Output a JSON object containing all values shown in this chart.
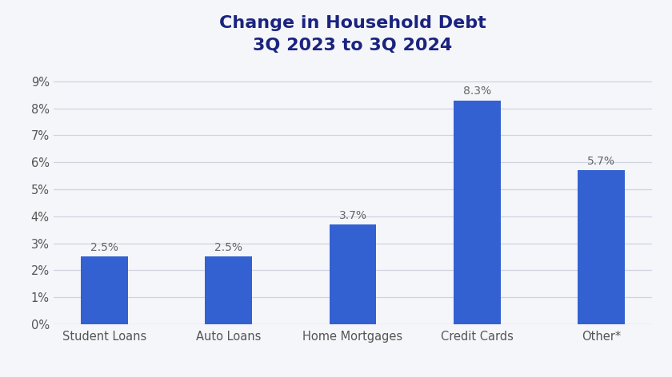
{
  "title_line1": "Change in Household Debt",
  "title_line2": "3Q 2023 to 3Q 2024",
  "categories": [
    "Student Loans",
    "Auto Loans",
    "Home Mortgages",
    "Credit Cards",
    "Other*"
  ],
  "values": [
    2.5,
    2.5,
    3.7,
    8.3,
    5.7
  ],
  "bar_color": "#3461d1",
  "label_color": "#666666",
  "title_color": "#1a237e",
  "background_color": "#f5f6fa",
  "ylim": [
    0,
    9.5
  ],
  "yticks": [
    0,
    1,
    2,
    3,
    4,
    5,
    6,
    7,
    8,
    9
  ],
  "ytick_labels": [
    "0%",
    "1%",
    "2%",
    "3%",
    "4%",
    "5%",
    "6%",
    "7%",
    "8%",
    "9%"
  ],
  "bar_width": 0.38,
  "title_fontsize": 16,
  "label_fontsize": 10,
  "tick_fontsize": 10.5,
  "grid_color": "#d0d3e0",
  "grid_linewidth": 0.9
}
